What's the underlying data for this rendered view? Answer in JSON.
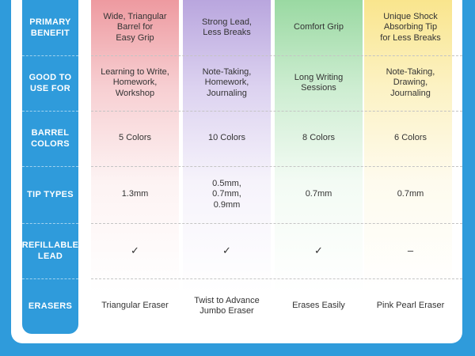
{
  "rows": [
    {
      "label": "PRIMARY\nBENEFIT",
      "cells": [
        "Wide, Triangular\nBarrel for\nEasy Grip",
        "Strong Lead,\nLess Breaks",
        "Comfort Grip",
        "Unique Shock\nAbsorbing Tip\nfor Less Breaks"
      ]
    },
    {
      "label": "GOOD TO\nUSE FOR",
      "cells": [
        "Learning to Write,\nHomework,\nWorkshop",
        "Note-Taking,\nHomework,\nJournaling",
        "Long Writing\nSessions",
        "Note-Taking,\nDrawing,\nJournaling"
      ]
    },
    {
      "label": "BARREL\nCOLORS",
      "cells": [
        "5 Colors",
        "10 Colors",
        "8 Colors",
        "6 Colors"
      ]
    },
    {
      "label": "TIP TYPES",
      "cells": [
        "1.3mm",
        "0.5mm,\n0.7mm,\n0.9mm",
        "0.7mm",
        "0.7mm"
      ]
    },
    {
      "label": "REFILLABLE\nLEAD",
      "cells": [
        "✓",
        "✓",
        "✓",
        "–"
      ]
    },
    {
      "label": "ERASERS",
      "cells": [
        "Triangular Eraser",
        "Twist to Advance\nJumbo Eraser",
        "Erases Easily",
        "Pink Pearl Eraser"
      ]
    }
  ],
  "colors": {
    "header_blue": "#2f9bdb",
    "col_red": "#ee9aa0",
    "col_purple": "#b9a6de",
    "col_green": "#9ad9a2",
    "col_yellow": "#f9e58d"
  }
}
